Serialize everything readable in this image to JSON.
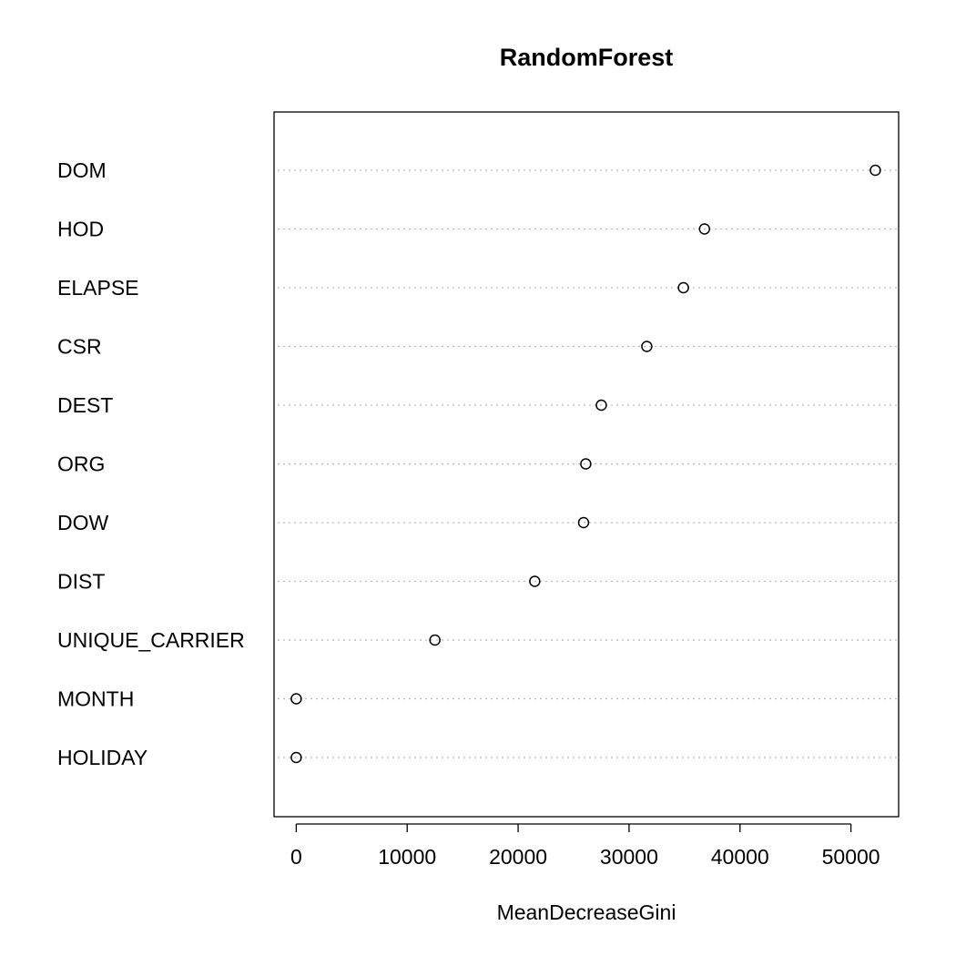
{
  "chart_data": {
    "type": "scatter",
    "title": "RandomForest",
    "xlabel": "MeanDecreaseGini",
    "ylabel": "",
    "xlim": [
      -2000,
      54300
    ],
    "xticks": [
      0,
      10000,
      20000,
      30000,
      40000,
      50000
    ],
    "xtick_labels": [
      "0",
      "10000",
      "20000",
      "30000",
      "40000",
      "50000"
    ],
    "grid": "dotted horizontal line per category",
    "legend": "none",
    "categories": [
      "DOM",
      "HOD",
      "ELAPSE",
      "CSR",
      "DEST",
      "ORG",
      "DOW",
      "DIST",
      "UNIQUE_CARRIER",
      "MONTH",
      "HOLIDAY"
    ],
    "values": [
      52200,
      36800,
      34900,
      31600,
      27500,
      26100,
      25900,
      21500,
      12500,
      0,
      0
    ],
    "colors": {
      "points": "#000000",
      "gridline": "#bbbbbb",
      "frame": "#000000"
    }
  }
}
